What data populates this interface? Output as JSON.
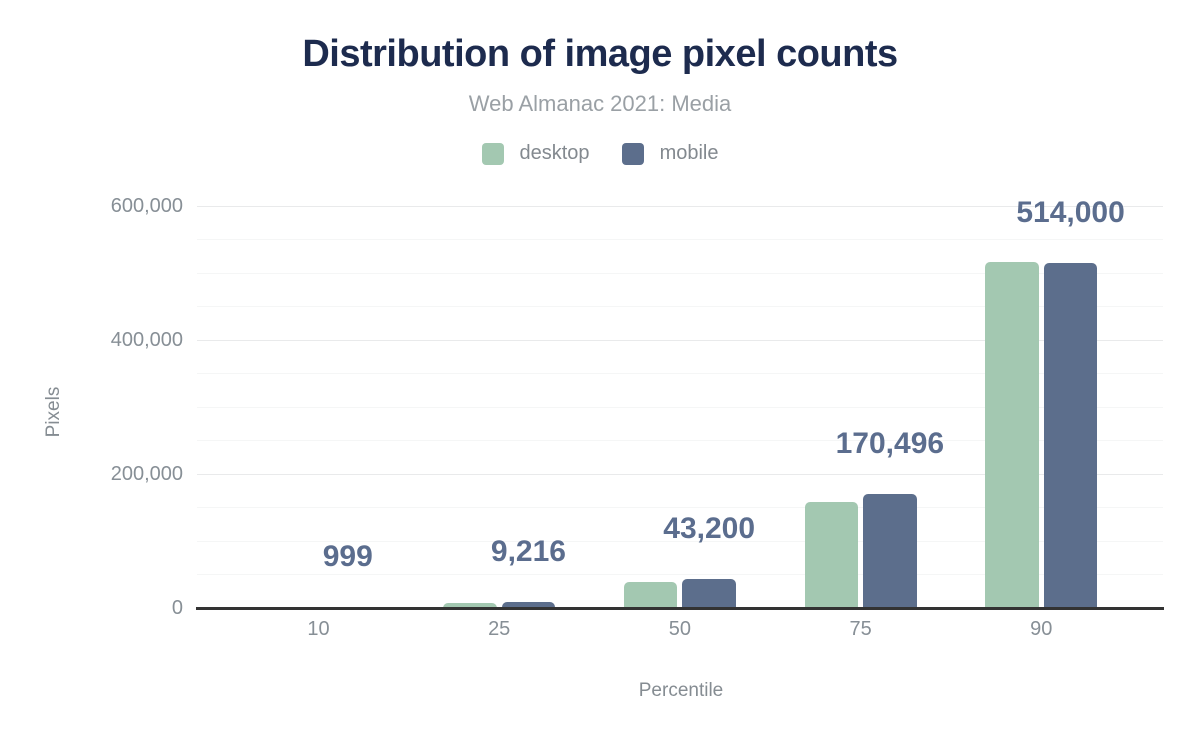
{
  "header": {
    "title": "Distribution of image pixel counts",
    "subtitle": "Web Almanac 2021: Media"
  },
  "legend": {
    "items": [
      {
        "label": "desktop",
        "color": "#a3c8b1"
      },
      {
        "label": "mobile",
        "color": "#5c6e8c"
      }
    ]
  },
  "axes": {
    "y_title": "Pixels",
    "x_title": "Percentile"
  },
  "colors": {
    "title": "#1d2b4e",
    "subtitle": "#9aa0a5",
    "axis_text": "#878f96",
    "data_label": "#5b6d8e",
    "desktop_bar": "#a3c8b1",
    "mobile_bar": "#5c6e8c",
    "axis_line": "#333333",
    "grid_major": "#e9eaeb",
    "grid_minor": "#f5f6f6"
  },
  "chart_data": {
    "type": "bar",
    "title": "Distribution of image pixel counts",
    "subtitle": "Web Almanac 2021: Media",
    "categories": [
      "10",
      "25",
      "50",
      "75",
      "90"
    ],
    "series": [
      {
        "name": "desktop",
        "color": "#a3c8b1",
        "values": [
          900,
          7500,
          38200,
          158000,
          516400
        ]
      },
      {
        "name": "mobile",
        "color": "#5c6e8c",
        "values": [
          999,
          9216,
          43200,
          170496,
          514000
        ]
      }
    ],
    "bar_labels": [
      "999",
      "9,216",
      "43,200",
      "170,496",
      "514,000"
    ],
    "xlabel": "Percentile",
    "ylabel": "Pixels",
    "ylim": [
      0,
      600000
    ],
    "y_ticks": [
      {
        "value": 0,
        "label": "0"
      },
      {
        "value": 200000,
        "label": "200,000"
      },
      {
        "value": 400000,
        "label": "400,000"
      },
      {
        "value": 600000,
        "label": "600,000"
      }
    ],
    "y_minor_step": 50000,
    "grid": "horizontal-only",
    "legend_position": "top"
  }
}
